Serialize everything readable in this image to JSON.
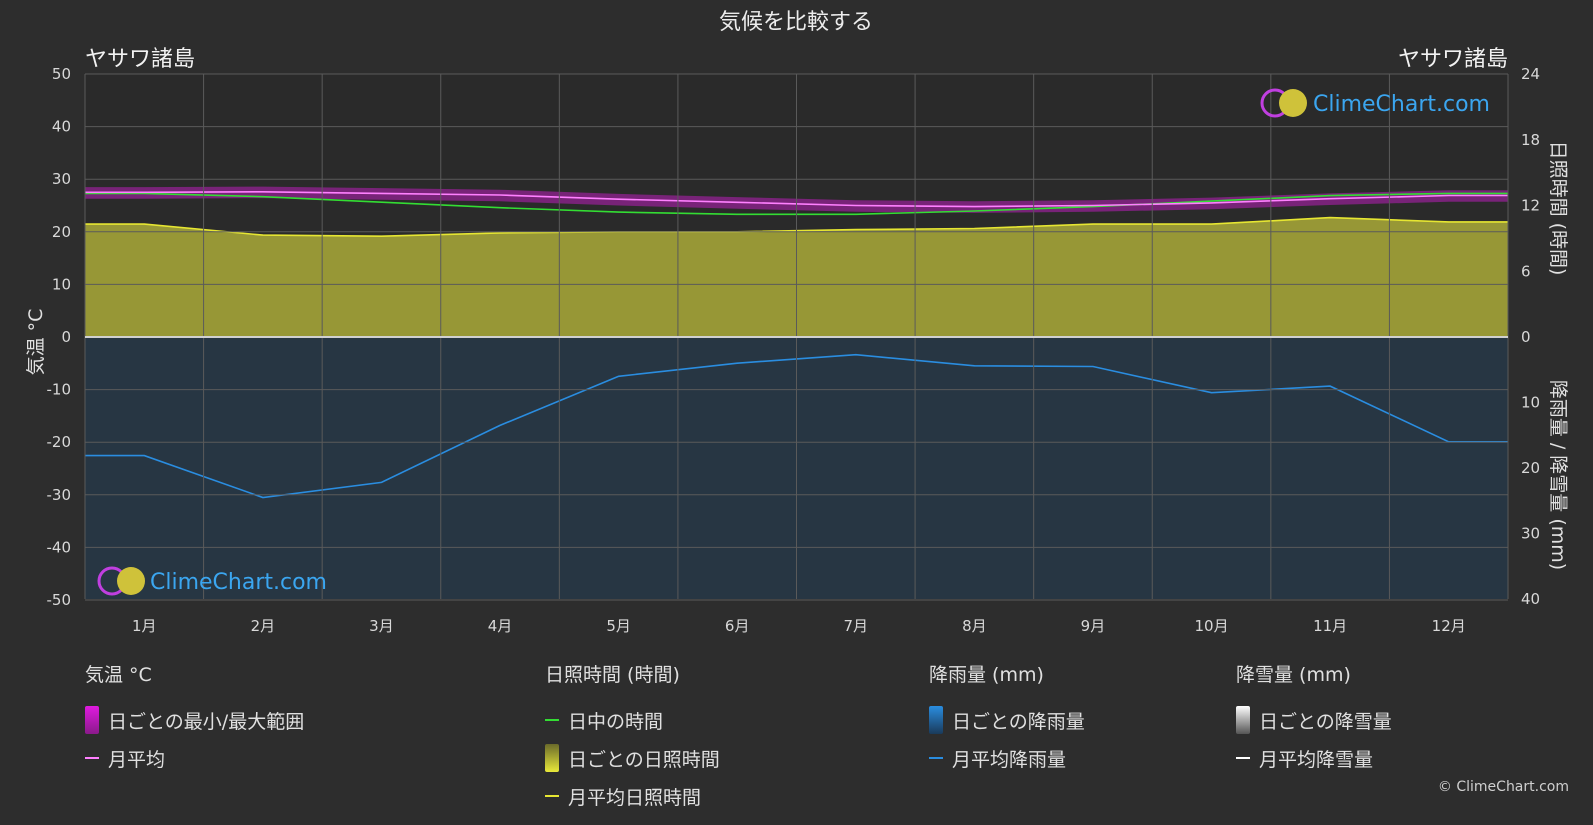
{
  "title": "気候を比較する",
  "location_left": "ヤサワ諸島",
  "location_right": "ヤサワ諸島",
  "watermark": "ClimeChart.com",
  "copyright": "© ClimeChart.com",
  "colors": {
    "background": "#2d2d2d",
    "temp_range": "#d81ad8",
    "temp_avg": "#ff80ff",
    "daylight": "#33dd33",
    "sunshine_fill": "#b3b33a",
    "sunshine_avg": "#e6e632",
    "rain": "#1a6fb5",
    "rain_avg": "#2a8de0",
    "snow": "#ffffff"
  },
  "chart_data": {
    "type": "line",
    "months": [
      "1月",
      "2月",
      "3月",
      "4月",
      "5月",
      "6月",
      "7月",
      "8月",
      "9月",
      "10月",
      "11月",
      "12月"
    ],
    "y_left": {
      "label": "気温 °C",
      "ticks": [
        50,
        40,
        30,
        20,
        10,
        0,
        -10,
        -20,
        -30,
        -40,
        -50
      ],
      "range": [
        -50,
        50
      ]
    },
    "y_right_top": {
      "label": "日照時間 (時間)",
      "ticks": [
        24,
        18,
        12,
        6,
        0
      ],
      "range": [
        0,
        24
      ]
    },
    "y_right_bottom": {
      "label": "降雨量 / 降雪量 (mm)",
      "ticks": [
        0,
        10,
        20,
        30,
        40
      ],
      "range": [
        0,
        40
      ]
    },
    "series": [
      {
        "name": "月平均",
        "unit": "°C",
        "values": [
          27.5,
          27.6,
          27.3,
          27.0,
          26.2,
          25.6,
          25.0,
          24.8,
          25.0,
          25.5,
          26.3,
          26.9
        ]
      },
      {
        "name": "日ごとの最小/最大範囲",
        "unit": "°C",
        "max": [
          28.5,
          28.6,
          28.3,
          28.0,
          27.2,
          26.6,
          26.0,
          25.8,
          26.0,
          26.5,
          27.3,
          27.9
        ],
        "min": [
          26.3,
          26.4,
          26.1,
          25.8,
          25.0,
          24.4,
          23.8,
          23.6,
          23.8,
          24.3,
          25.1,
          25.7
        ]
      },
      {
        "name": "日中の時間",
        "unit": "時間",
        "values": [
          13.1,
          12.8,
          12.3,
          11.8,
          11.4,
          11.2,
          11.2,
          11.5,
          11.9,
          12.4,
          12.9,
          13.1
        ]
      },
      {
        "name": "月平均日照時間",
        "unit": "時間",
        "values": [
          10.3,
          9.3,
          9.2,
          9.5,
          9.6,
          9.6,
          9.8,
          9.9,
          10.3,
          10.3,
          10.9,
          10.5
        ]
      },
      {
        "name": "月平均降雨量",
        "unit": "mm",
        "values": [
          18.1,
          24.5,
          22.2,
          13.5,
          6.0,
          4.0,
          2.7,
          4.4,
          4.5,
          8.5,
          7.5,
          16.0
        ]
      },
      {
        "name": "月平均降雪量",
        "unit": "mm",
        "values": [
          0,
          0,
          0,
          0,
          0,
          0,
          0,
          0,
          0,
          0,
          0,
          0
        ]
      }
    ]
  },
  "legend": {
    "temp": {
      "header": "気温 °C",
      "items": [
        "日ごとの最小/最大範囲",
        "月平均"
      ]
    },
    "sun": {
      "header": "日照時間 (時間)",
      "items": [
        "日中の時間",
        "日ごとの日照時間",
        "月平均日照時間"
      ]
    },
    "rain": {
      "header": "降雨量 (mm)",
      "items": [
        "日ごとの降雨量",
        "月平均降雨量"
      ]
    },
    "snow": {
      "header": "降雪量 (mm)",
      "items": [
        "日ごとの降雪量",
        "月平均降雪量"
      ]
    }
  }
}
